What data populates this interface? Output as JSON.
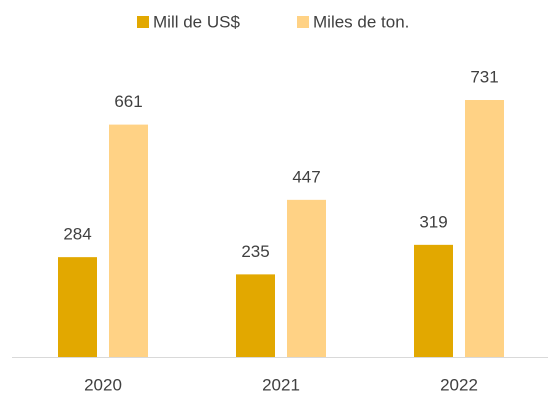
{
  "chart_data": {
    "type": "bar",
    "categories": [
      "2020",
      "2021",
      "2022"
    ],
    "series": [
      {
        "name": "Mill de US$",
        "color": "#E2A800",
        "values": [
          284,
          235,
          319
        ]
      },
      {
        "name": "Miles de ton.",
        "color": "#FFD285",
        "values": [
          661,
          447,
          731
        ]
      }
    ],
    "legend": "top",
    "grid": false
  }
}
